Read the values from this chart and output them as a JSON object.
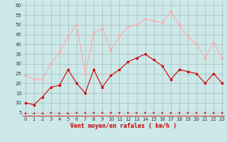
{
  "x": [
    0,
    1,
    2,
    3,
    4,
    5,
    6,
    7,
    8,
    9,
    10,
    11,
    12,
    13,
    14,
    15,
    16,
    17,
    18,
    19,
    20,
    21,
    22,
    23
  ],
  "vent_moyen": [
    10,
    9,
    13,
    18,
    19,
    27,
    20,
    15,
    27,
    18,
    24,
    27,
    31,
    33,
    35,
    32,
    29,
    22,
    27,
    26,
    25,
    20,
    25,
    20
  ],
  "en_rafales": [
    24,
    22,
    22,
    30,
    36,
    44,
    50,
    25,
    46,
    48,
    37,
    44,
    49,
    50,
    53,
    52,
    51,
    57,
    50,
    44,
    40,
    33,
    41,
    33
  ],
  "color_moyen": "#cc0000",
  "color_rafales": "#ffaaaa",
  "bg_color": "#cce8e8",
  "grid_color": "#aabbbb",
  "xlabel": "Vent moyen/en rafales ( km/h )",
  "yticks": [
    5,
    10,
    15,
    20,
    25,
    30,
    35,
    40,
    45,
    50,
    55,
    60
  ],
  "xticks": [
    0,
    1,
    2,
    3,
    4,
    5,
    6,
    7,
    8,
    9,
    10,
    11,
    12,
    13,
    14,
    15,
    16,
    17,
    18,
    19,
    20,
    21,
    22,
    23
  ],
  "ylim": [
    3,
    62
  ],
  "xlim": [
    -0.3,
    23.3
  ],
  "arrow_angles": [
    225,
    225,
    225,
    270,
    315,
    315,
    270,
    270,
    270,
    270,
    270,
    270,
    270,
    270,
    270,
    270,
    270,
    270,
    270,
    270,
    270,
    270,
    270,
    270
  ]
}
